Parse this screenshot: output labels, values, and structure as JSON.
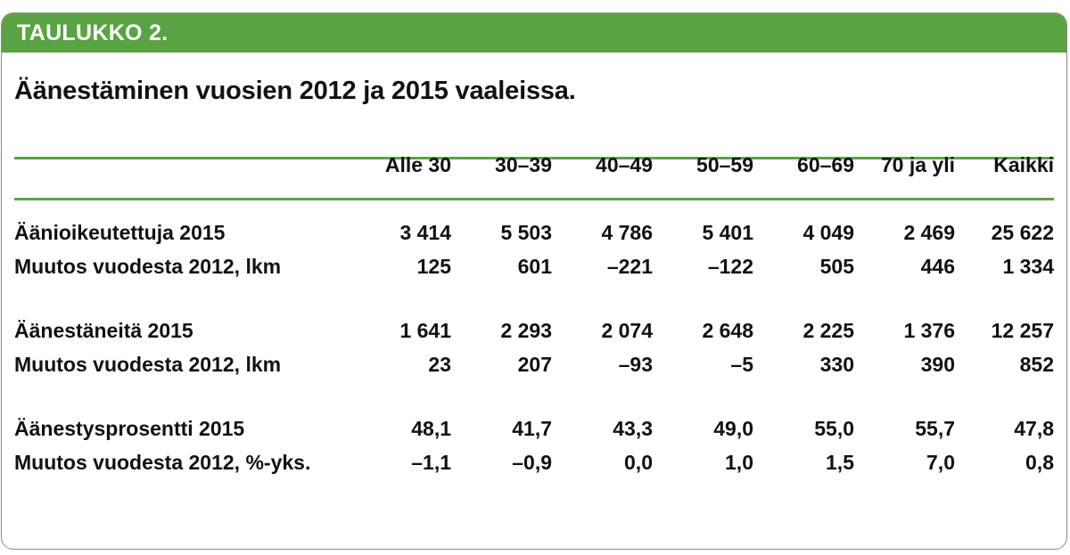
{
  "header": {
    "label": "TAULUKKO 2."
  },
  "title": "Äänestäminen vuosien 2012 ja 2015 vaaleissa.",
  "colors": {
    "accent": "#5aa343"
  },
  "chart_data": {
    "type": "table",
    "columns": [
      "Alle 30",
      "30–39",
      "40–49",
      "50–59",
      "60–69",
      "70 ja yli",
      "Kaikki"
    ],
    "rows": [
      {
        "label": "Äänioikeutettuja 2015",
        "values": [
          "3 414",
          "5 503",
          "4 786",
          "5 401",
          "4 049",
          "2 469",
          "25 622"
        ]
      },
      {
        "label": "Muutos vuodesta 2012, lkm",
        "values": [
          "125",
          "601",
          "–221",
          "–122",
          "505",
          "446",
          "1 334"
        ]
      },
      {
        "label": "Äänestäneitä 2015",
        "values": [
          "1 641",
          "2 293",
          "2 074",
          "2 648",
          "2 225",
          "1 376",
          "12 257"
        ]
      },
      {
        "label": "Muutos vuodesta 2012, lkm",
        "values": [
          "23",
          "207",
          "–93",
          "–5",
          "330",
          "390",
          "852"
        ]
      },
      {
        "label": "Äänestysprosentti 2015",
        "values": [
          "48,1",
          "41,7",
          "43,3",
          "49,0",
          "55,0",
          "55,7",
          "47,8"
        ]
      },
      {
        "label": "Muutos vuodesta 2012, %-yks.",
        "values": [
          "–1,1",
          "–0,9",
          "0,0",
          "1,0",
          "1,5",
          "7,0",
          "0,8"
        ]
      }
    ]
  }
}
